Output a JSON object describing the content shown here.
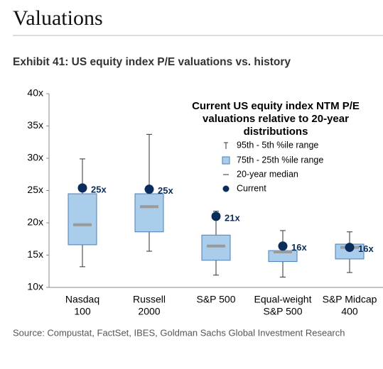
{
  "header": {
    "title": "Valuations"
  },
  "chart_data": {
    "type": "box",
    "title": "Exhibit 41: US equity index P/E valuations vs. history",
    "legend_title": [
      "Current US equity index NTM P/E",
      "valuations relative to 20-year",
      "distributions"
    ],
    "categories": [
      [
        "Nasdaq",
        "100"
      ],
      [
        "Russell",
        "2000"
      ],
      [
        "S&P 500"
      ],
      [
        "Equal-weight",
        "S&P 500"
      ],
      [
        "S&P Midcap",
        "400"
      ]
    ],
    "whisker": {
      "name": "95th - 5th %ile range",
      "color": "#333333",
      "high": [
        29.9,
        33.7,
        21.8,
        18.8,
        18.6
      ],
      "low": [
        13.2,
        15.6,
        11.9,
        11.6,
        12.3
      ]
    },
    "box": {
      "name": "75th - 25th %ile range",
      "color": "#a9cdea",
      "high": [
        24.5,
        24.5,
        18.1,
        15.7,
        16.7
      ],
      "low": [
        16.6,
        18.6,
        14.2,
        14.0,
        14.4
      ]
    },
    "median": {
      "name": "20-year median",
      "color": "#9a9a9a",
      "values": [
        19.7,
        22.5,
        16.4,
        15.5,
        16.2
      ]
    },
    "current": {
      "name": "Current",
      "color": "#0b2d5b",
      "values": [
        25.4,
        25.2,
        21.0,
        16.4,
        16.2
      ],
      "value_labels": [
        "25x",
        "25x",
        "21x",
        "16x",
        "16x"
      ]
    },
    "ylim": [
      10,
      40
    ],
    "yticks": [
      {
        "value": 10,
        "label": "10x"
      },
      {
        "value": 15,
        "label": "15x"
      },
      {
        "value": 20,
        "label": "20x"
      },
      {
        "value": 25,
        "label": "25x"
      },
      {
        "value": 30,
        "label": "30x"
      },
      {
        "value": 35,
        "label": "35x"
      },
      {
        "value": 40,
        "label": "40x"
      }
    ]
  },
  "source": "Source: Compustat, FactSet, IBES, Goldman Sachs Global Investment Research"
}
